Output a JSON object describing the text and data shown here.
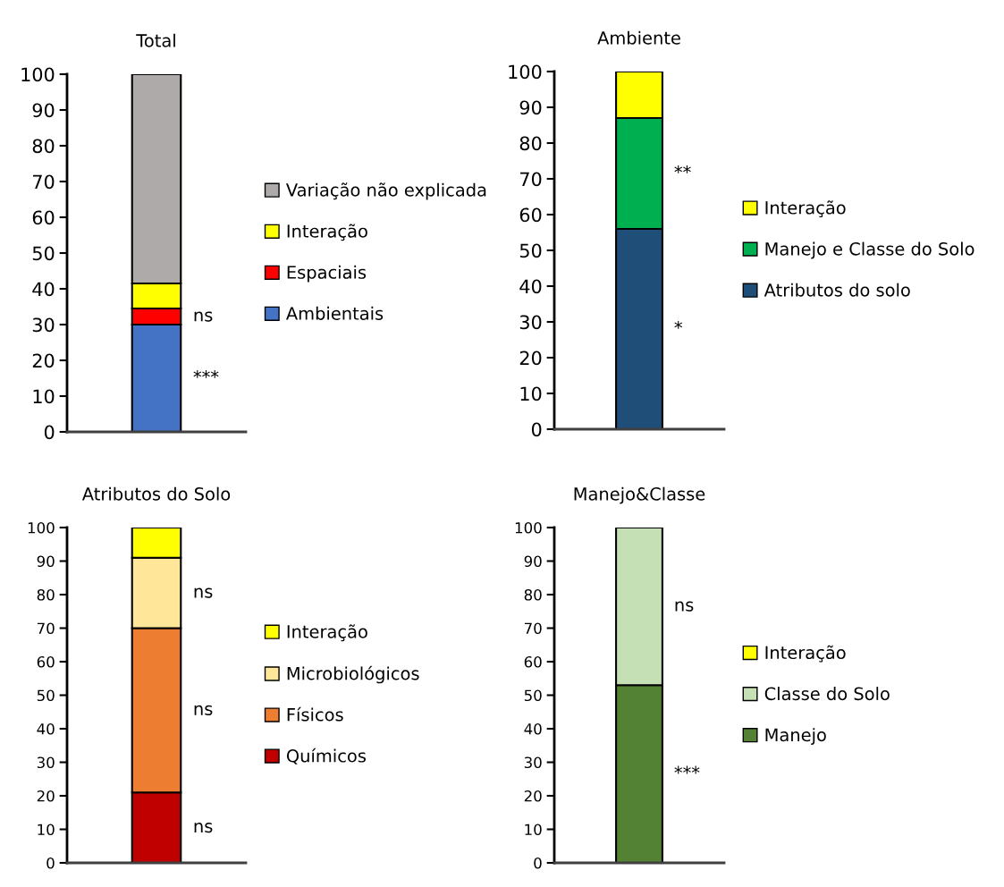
{
  "chart_data": [
    {
      "type": "bar",
      "title": "Total",
      "stacked": true,
      "categories": [
        null
      ],
      "ylim": [
        0,
        100
      ],
      "yticks": [
        0,
        10,
        20,
        30,
        40,
        50,
        60,
        70,
        80,
        90,
        100
      ],
      "grid": false,
      "legend": "right",
      "tick_labels": "y",
      "series": [
        {
          "name": "Ambientais",
          "color": "#4472c4",
          "values": [
            30
          ]
        },
        {
          "name": "Espaciais",
          "color": "#ff0000",
          "values": [
            4.5
          ]
        },
        {
          "name": "Interação",
          "color": "#ffff00",
          "values": [
            7
          ]
        },
        {
          "name": "Variação não explicada",
          "color": "#aeaaaa",
          "values": [
            58.5
          ]
        }
      ],
      "annotations": [
        "***",
        "ns"
      ]
    },
    {
      "type": "bar",
      "title": "Ambiente",
      "stacked": true,
      "categories": [
        null
      ],
      "ylim": [
        0,
        100
      ],
      "yticks": [
        0,
        10,
        20,
        30,
        40,
        50,
        60,
        70,
        80,
        90,
        100
      ],
      "grid": false,
      "legend": "right",
      "tick_labels": "y",
      "series": [
        {
          "name": "Atributos do solo",
          "color": "#1f4e79",
          "values": [
            56
          ]
        },
        {
          "name": "Manejo e Classe do Solo",
          "color": "#00b050",
          "values": [
            31
          ]
        },
        {
          "name": "Interação",
          "color": "#ffff00",
          "values": [
            13
          ]
        }
      ],
      "annotations": [
        "*",
        "**"
      ]
    },
    {
      "type": "bar",
      "title": "Atributos do Solo",
      "stacked": true,
      "categories": [
        null
      ],
      "ylim": [
        0,
        100
      ],
      "yticks": [
        0,
        10,
        20,
        30,
        40,
        50,
        60,
        70,
        80,
        90,
        100
      ],
      "grid": false,
      "legend": "right",
      "tick_labels": "y",
      "series": [
        {
          "name": "Químicos",
          "color": "#c00000",
          "values": [
            21
          ]
        },
        {
          "name": "Físicos",
          "color": "#ed7d31",
          "values": [
            49
          ]
        },
        {
          "name": "Microbiológicos",
          "color": "#ffe699",
          "values": [
            21
          ]
        },
        {
          "name": "Interação",
          "color": "#ffff00",
          "values": [
            9
          ]
        }
      ],
      "annotations": [
        "ns",
        "ns",
        "ns"
      ]
    },
    {
      "type": "bar",
      "title": "Manejo&Classe",
      "stacked": true,
      "categories": [
        null
      ],
      "ylim": [
        0,
        100
      ],
      "yticks": [
        0,
        10,
        20,
        30,
        40,
        50,
        60,
        70,
        80,
        90,
        100
      ],
      "grid": false,
      "legend": "right",
      "tick_labels": "y",
      "series": [
        {
          "name": "Manejo",
          "color": "#548235",
          "values": [
            53
          ]
        },
        {
          "name": "Classe do Solo",
          "color": "#c5e0b4",
          "values": [
            47
          ]
        },
        {
          "name": "Interação",
          "color": "#ffff00",
          "values": [
            null
          ]
        }
      ],
      "annotations": [
        "***",
        "ns"
      ]
    }
  ]
}
